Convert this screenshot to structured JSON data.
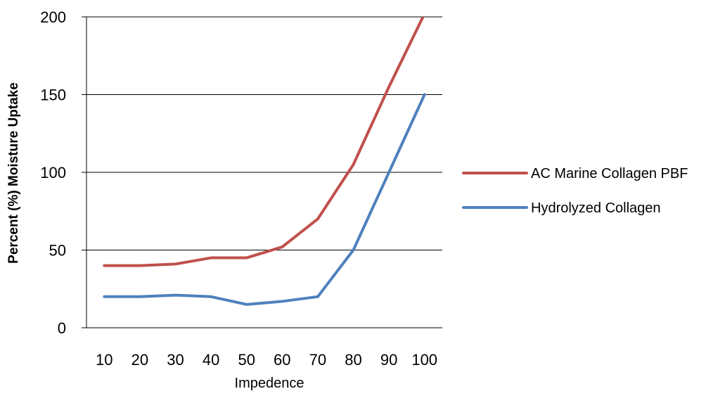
{
  "chart_data": {
    "type": "line",
    "title": "",
    "xlabel": "Impedence",
    "ylabel": "Percent (%) Moisture Uptake",
    "categories": [
      "10",
      "20",
      "30",
      "40",
      "50",
      "60",
      "70",
      "80",
      "90",
      "100"
    ],
    "ylim": [
      0,
      200
    ],
    "yticks": [
      "0",
      "50",
      "100",
      "150",
      "200"
    ],
    "grid": "horizontal",
    "legend_position": "right",
    "series": [
      {
        "name": "AC Marine Collagen PBF",
        "color": "#C0504D",
        "values": [
          40,
          40,
          41,
          45,
          45,
          52,
          70,
          105,
          155,
          202
        ]
      },
      {
        "name": "Hydrolyzed Collagen",
        "color": "#4F81BD",
        "values": [
          20,
          20,
          21,
          20,
          15,
          17,
          20,
          50,
          100,
          150
        ]
      }
    ]
  }
}
